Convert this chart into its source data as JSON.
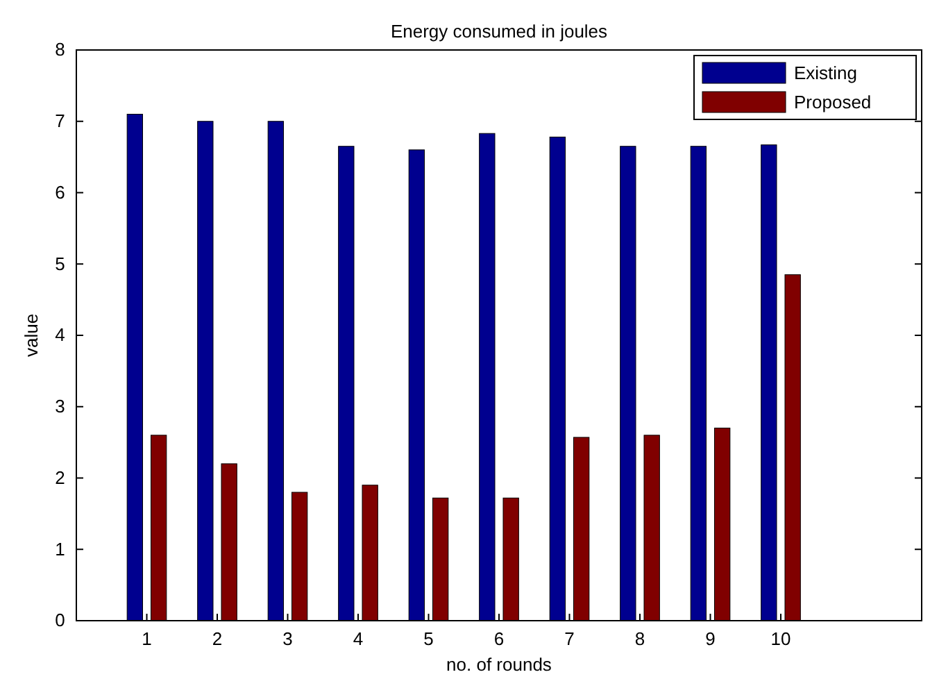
{
  "chart_data": {
    "type": "bar",
    "title": "Energy consumed in joules",
    "xlabel": "no. of rounds",
    "ylabel": "value",
    "x": [
      1,
      2,
      3,
      4,
      5,
      6,
      7,
      8,
      9,
      10
    ],
    "series": [
      {
        "name": "Existing",
        "color": "#00008f",
        "values": [
          7.1,
          7.0,
          7.0,
          6.65,
          6.6,
          6.83,
          6.78,
          6.65,
          6.65,
          6.67
        ]
      },
      {
        "name": "Proposed",
        "color": "#800000",
        "values": [
          2.6,
          2.2,
          1.8,
          1.9,
          1.72,
          1.72,
          2.57,
          2.6,
          2.7,
          4.85
        ]
      }
    ],
    "xlim": [
      0,
      12
    ],
    "xticks": [
      1,
      2,
      3,
      4,
      5,
      6,
      7,
      8,
      9,
      10
    ],
    "ylim": [
      0,
      8
    ],
    "yticks": [
      0,
      1,
      2,
      3,
      4,
      5,
      6,
      7,
      8
    ],
    "legend": "top right"
  }
}
